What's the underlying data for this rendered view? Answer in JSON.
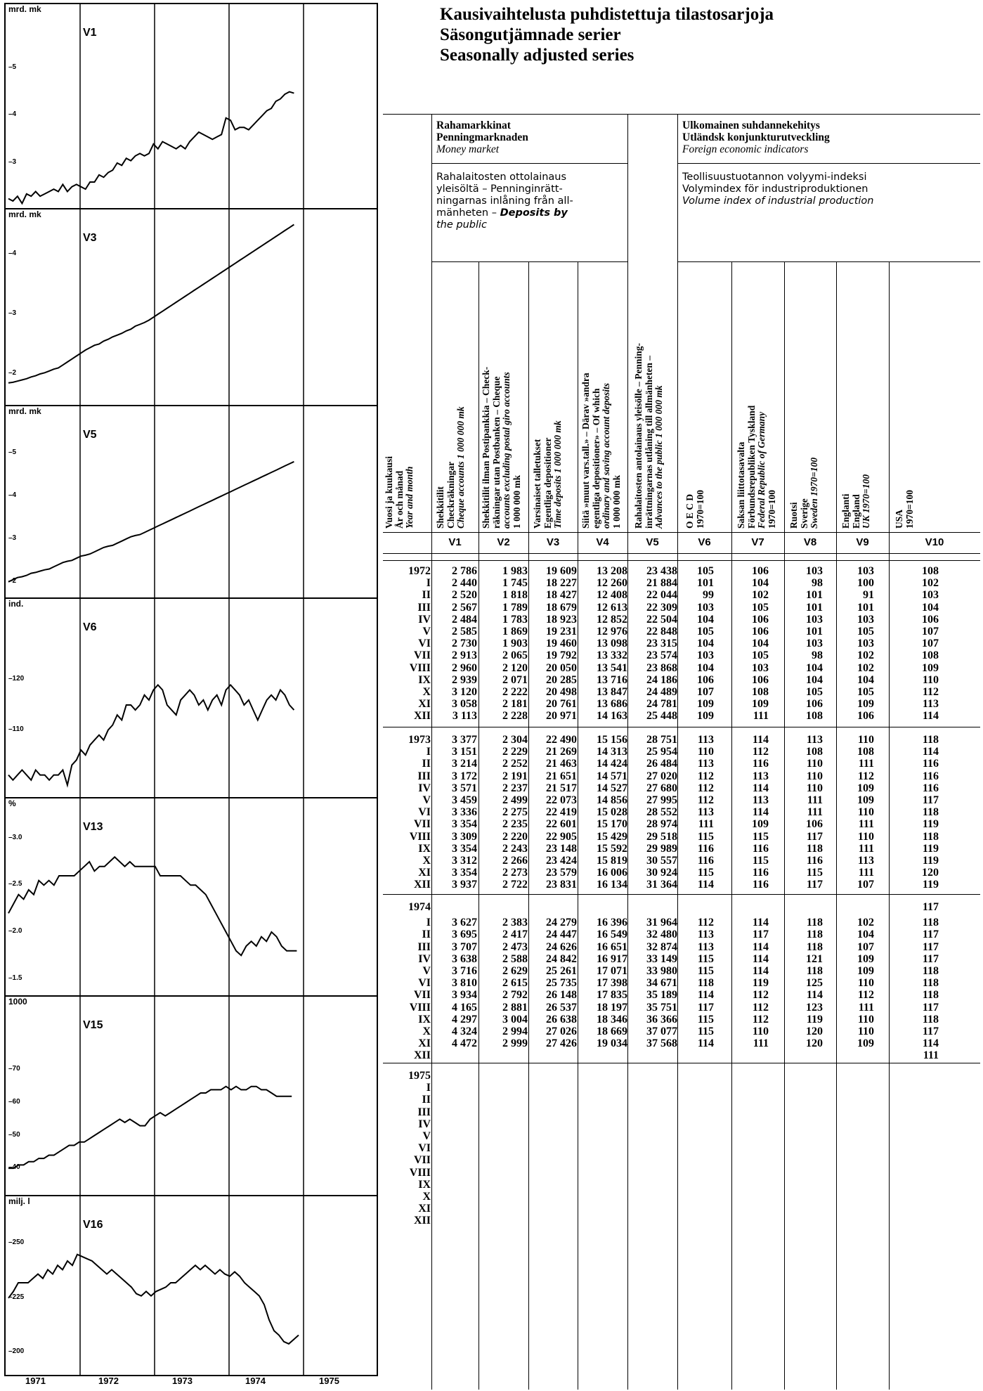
{
  "titles": [
    "Kausivaihtelusta puhdistettuja tilastosarjoja",
    "Säsongutjämnade serier",
    "Seasonally adjusted series"
  ],
  "charts": [
    {
      "name": "V1",
      "unit": "mrd. mk",
      "ticks": [
        {
          "label": "–5",
          "v": 5
        },
        {
          "label": "–4",
          "v": 4
        },
        {
          "label": "–3",
          "v": 3
        }
      ],
      "ymin": 2.2,
      "ymax": 5.9,
      "values": [
        2.25,
        2.2,
        2.3,
        2.15,
        2.35,
        2.3,
        2.4,
        2.3,
        2.35,
        2.4,
        2.45,
        2.4,
        2.55,
        2.4,
        2.5,
        2.55,
        2.5,
        2.45,
        2.6,
        2.6,
        2.75,
        2.7,
        2.8,
        2.85,
        3.0,
        2.95,
        3.1,
        3.05,
        3.15,
        3.2,
        3.15,
        3.2,
        3.4,
        3.3,
        3.45,
        3.4,
        3.35,
        3.3,
        3.37,
        3.3,
        3.45,
        3.55,
        3.65,
        3.6,
        3.55,
        3.5,
        3.55,
        3.6,
        3.95,
        3.9,
        3.7,
        3.75,
        3.75,
        3.7,
        3.8,
        3.9,
        4.0,
        4.1,
        4.15,
        4.3,
        4.35,
        4.45,
        4.5,
        4.47
      ]
    },
    {
      "name": "V3",
      "unit": "mrd. mk",
      "ticks": [
        {
          "label": "–4",
          "v": 4
        },
        {
          "label": "–3",
          "v": 3
        },
        {
          "label": "–2",
          "v": 2
        }
      ],
      "ymin": 1.6,
      "ymax": 4.4,
      "values": [
        1.85,
        1.86,
        1.88,
        1.9,
        1.92,
        1.95,
        1.97,
        2.0,
        2.02,
        2.05,
        2.08,
        2.1,
        2.15,
        2.2,
        2.25,
        2.3,
        2.35,
        2.4,
        2.44,
        2.48,
        2.5,
        2.55,
        2.58,
        2.62,
        2.65,
        2.68,
        2.72,
        2.75,
        2.8,
        2.83,
        2.86,
        2.9,
        2.95,
        3.0,
        3.05,
        3.1,
        3.15,
        3.2,
        3.25,
        3.3,
        3.35,
        3.4,
        3.45,
        3.5,
        3.55,
        3.6,
        3.65,
        3.7,
        3.75,
        3.8,
        3.85,
        3.9,
        3.95,
        4.0,
        4.05,
        4.1,
        4.15,
        4.2,
        4.25,
        4.3,
        4.35,
        4.4,
        4.45,
        4.5
      ]
    },
    {
      "name": "V5",
      "unit": "mrd. mk",
      "ticks": [
        {
          "label": "–5",
          "v": 5
        },
        {
          "label": "–4",
          "v": 4
        },
        {
          "label": "–3",
          "v": 3
        },
        {
          "label": "–2",
          "v": 2
        }
      ],
      "ymin": 1.8,
      "ymax": 5.6,
      "values": [
        2.0,
        2.05,
        2.1,
        2.12,
        2.15,
        2.2,
        2.22,
        2.25,
        2.28,
        2.3,
        2.35,
        2.4,
        2.45,
        2.48,
        2.5,
        2.55,
        2.6,
        2.62,
        2.65,
        2.7,
        2.75,
        2.8,
        2.83,
        2.85,
        2.9,
        2.95,
        3.0,
        3.05,
        3.08,
        3.1,
        3.15,
        3.2,
        3.25,
        3.3,
        3.35,
        3.4,
        3.45,
        3.5,
        3.55,
        3.6,
        3.65,
        3.7,
        3.75,
        3.8,
        3.85,
        3.9,
        3.95,
        4.0,
        4.05,
        4.1,
        4.15,
        4.2,
        4.25,
        4.3,
        4.35,
        4.4,
        4.45,
        4.5,
        4.55,
        4.6,
        4.65,
        4.7,
        4.75,
        4.8
      ]
    },
    {
      "name": "V6",
      "unit": "ind.",
      "ticks": [
        {
          "label": "–120",
          "v": 120
        },
        {
          "label": "–110",
          "v": 110
        }
      ],
      "ymin": 98,
      "ymax": 132,
      "values": [
        101,
        100,
        101,
        102,
        101,
        100,
        102,
        101,
        101,
        100,
        101,
        101,
        102,
        99,
        103,
        104,
        106,
        105,
        107,
        108,
        109,
        108,
        110,
        111,
        113,
        112,
        115,
        115,
        114,
        115,
        117,
        116,
        118,
        119,
        118,
        115,
        114,
        113,
        116,
        117,
        118,
        117,
        115,
        116,
        114,
        116,
        117,
        115,
        118,
        119,
        118,
        117,
        115,
        116,
        114,
        112,
        114,
        116,
        117,
        116,
        118,
        117,
        115,
        114
      ]
    },
    {
      "name": "V13",
      "unit": "%",
      "ticks": [
        {
          "label": "–3.0",
          "v": 3.0
        },
        {
          "label": "–2.5",
          "v": 2.5
        },
        {
          "label": "–2.0",
          "v": 2.0
        },
        {
          "label": "–1.5",
          "v": 1.5
        }
      ],
      "ymin": 1.4,
      "ymax": 3.2,
      "values": [
        2.2,
        2.3,
        2.4,
        2.35,
        2.45,
        2.4,
        2.55,
        2.5,
        2.55,
        2.5,
        2.6,
        2.6,
        2.6,
        2.6,
        2.65,
        2.7,
        2.75,
        2.65,
        2.7,
        2.7,
        2.75,
        2.8,
        2.75,
        2.7,
        2.75,
        2.7,
        2.7,
        2.7,
        2.7,
        2.7,
        2.6,
        2.6,
        2.6,
        2.6,
        2.6,
        2.55,
        2.5,
        2.5,
        2.45,
        2.4,
        2.3,
        2.2,
        2.1,
        2.0,
        1.9,
        1.8,
        1.75,
        1.85,
        1.9,
        1.85,
        1.95,
        1.9,
        2.0,
        1.95,
        1.85,
        1.8,
        1.8,
        1.8
      ]
    },
    {
      "name": "V15",
      "unit": "1000",
      "ticks": [
        {
          "label": "–70",
          "v": 70
        },
        {
          "label": "–60",
          "v": 60
        },
        {
          "label": "–50",
          "v": 50
        },
        {
          "label": "–40",
          "v": 40
        }
      ],
      "ymin": 34,
      "ymax": 86,
      "values": [
        40,
        40,
        41,
        41,
        42,
        42,
        43,
        43,
        44,
        44,
        45,
        46,
        47,
        47,
        48,
        48,
        49,
        50,
        51,
        52,
        53,
        54,
        55,
        54,
        55,
        54,
        53,
        53,
        55,
        56,
        57,
        56,
        57,
        58,
        59,
        60,
        61,
        62,
        63,
        63,
        64,
        64,
        64,
        65,
        64,
        65,
        64,
        64,
        65,
        65,
        64,
        64,
        63,
        62,
        62,
        62,
        62
      ]
    },
    {
      "name": "V16",
      "unit": "milj. l",
      "ticks": [
        {
          "label": "–250",
          "v": 250
        },
        {
          "label": "–225",
          "v": 225
        },
        {
          "label": "–200",
          "v": 200
        }
      ],
      "ymin": 193,
      "ymax": 262,
      "values": [
        225,
        228,
        232,
        232,
        232,
        234,
        236,
        234,
        238,
        236,
        240,
        238,
        242,
        240,
        245,
        244,
        243,
        242,
        240,
        238,
        236,
        238,
        236,
        234,
        232,
        230,
        227,
        226,
        228,
        226,
        228,
        229,
        230,
        232,
        232,
        234,
        236,
        238,
        240,
        238,
        240,
        238,
        236,
        238,
        236,
        235,
        237,
        235,
        232,
        230,
        228,
        226,
        222,
        215,
        210,
        208,
        205,
        204,
        206,
        208
      ]
    }
  ],
  "year_labels": [
    "1971",
    "1972",
    "1973",
    "1974",
    "1975"
  ],
  "table": {
    "group1": {
      "fi": "Rahamarkkinat",
      "sv": "Penningmarknaden",
      "en": "Money market"
    },
    "group1sub": {
      "l1": "Rahalaitosten ottolainaus",
      "l2": "yleisöltä – Penninginrätt-",
      "l3": "ningarnas inlåning från all-",
      "l4": "mänheten –",
      "l4b": "Deposits by",
      "l5": "the public"
    },
    "group2": {
      "fi": "Ulkomainen suhdannekehitys",
      "sv": "Utländsk konjunkturutveckling",
      "en": "Foreign economic indicators"
    },
    "group2sub": {
      "fi": "Teollisuustuotannon volyymi-indeksi",
      "sv": "Volymindex för industriproduktionen",
      "en": "Volume index of industrial production"
    },
    "col0": {
      "a": "Vuosi ja kuukausi",
      "b": "År och månad",
      "c": "Year and month"
    },
    "cols": [
      {
        "a": "Shekkitilit",
        "b": "Checkräkningar",
        "c": "Cheque accounts",
        "d": "1 000 000 mk"
      },
      {
        "a": "Shekkitilit ilman Postipankkia – Check-",
        "b": "räkningar utan Postbanken –",
        "c": "Cheque",
        "d": "accounts excluding postal giro accounts",
        "e": "1 000 000 mk"
      },
      {
        "a": "Varsinaiset talletukset",
        "b": "Egentliga depositioner",
        "c": "Time deposits",
        "d": "1 000 000 mk"
      },
      {
        "a": "Siitä »muut vars.tall.» – Därav »andra",
        "b": "egentliga depositioner» –",
        "c": "Of which",
        "d": "ordinary and saving account deposits",
        "e": "1 000 000 mk"
      },
      {
        "a": "Rahalaitosten antolainaus yleisölle – Penning-",
        "b": "inrättningarnas utlåning till allmänheten –",
        "c": "Advances to the public",
        "d": "1 000 000 mk"
      },
      {
        "a": "O E C D",
        "b": "1970=100"
      },
      {
        "a": "Saksan liittotasavalta",
        "b": "Förbundsrepubliken Tyskland",
        "c": "Federal Republic of Germany",
        "d": "1970=100"
      },
      {
        "a": "Ruotsi",
        "b": "Sverige",
        "c": "Sweden",
        "d": "1970=100"
      },
      {
        "a": "Englanti",
        "b": "England",
        "c": "UK",
        "d": "1970=100"
      },
      {
        "a": "USA",
        "b": "1970=100"
      }
    ],
    "codes": [
      "V1",
      "V2",
      "V3",
      "V4",
      "V5",
      "V6",
      "V7",
      "V8",
      "V9",
      "V10"
    ],
    "rows1972": [
      [
        "1972",
        "2 786",
        "1 983",
        "19 609",
        "13 208",
        "23 438",
        "105",
        "106",
        "103",
        "103",
        "108"
      ],
      [
        "I",
        "2 440",
        "1 745",
        "18 227",
        "12 260",
        "21 884",
        "101",
        "104",
        "98",
        "100",
        "102"
      ],
      [
        "II",
        "2 520",
        "1 818",
        "18 427",
        "12 408",
        "22 044",
        "99",
        "102",
        "101",
        "91",
        "103"
      ],
      [
        "III",
        "2 567",
        "1 789",
        "18 679",
        "12 613",
        "22 309",
        "103",
        "105",
        "101",
        "101",
        "104"
      ],
      [
        "IV",
        "2 484",
        "1 783",
        "18 923",
        "12 852",
        "22 504",
        "104",
        "106",
        "103",
        "103",
        "106"
      ],
      [
        "V",
        "2 585",
        "1 869",
        "19 231",
        "12 976",
        "22 848",
        "105",
        "106",
        "101",
        "105",
        "107"
      ],
      [
        "VI",
        "2 730",
        "1 903",
        "19 460",
        "13 098",
        "23 315",
        "104",
        "104",
        "103",
        "103",
        "107"
      ],
      [
        "VII",
        "2 913",
        "2 065",
        "19 792",
        "13 332",
        "23 574",
        "103",
        "105",
        "98",
        "102",
        "108"
      ],
      [
        "VIII",
        "2 960",
        "2 120",
        "20 050",
        "13 541",
        "23 868",
        "104",
        "103",
        "104",
        "102",
        "109"
      ],
      [
        "IX",
        "2 939",
        "2 071",
        "20 285",
        "13 716",
        "24 186",
        "106",
        "106",
        "104",
        "104",
        "110"
      ],
      [
        "X",
        "3 120",
        "2 222",
        "20 498",
        "13 847",
        "24 489",
        "107",
        "108",
        "105",
        "105",
        "112"
      ],
      [
        "XI",
        "3 058",
        "2 181",
        "20 761",
        "13 686",
        "24 781",
        "109",
        "109",
        "106",
        "109",
        "113"
      ],
      [
        "XII",
        "3 113",
        "2 228",
        "20 971",
        "14 163",
        "25 448",
        "109",
        "111",
        "108",
        "106",
        "114"
      ]
    ],
    "rows1973": [
      [
        "1973",
        "3 377",
        "2 304",
        "22 490",
        "15 156",
        "28 751",
        "113",
        "114",
        "113",
        "110",
        "118"
      ],
      [
        "I",
        "3 151",
        "2 229",
        "21 269",
        "14 313",
        "25 954",
        "110",
        "112",
        "108",
        "108",
        "114"
      ],
      [
        "II",
        "3 214",
        "2 252",
        "21 463",
        "14 424",
        "26 484",
        "113",
        "116",
        "110",
        "111",
        "116"
      ],
      [
        "III",
        "3 172",
        "2 191",
        "21 651",
        "14 571",
        "27 020",
        "112",
        "113",
        "110",
        "112",
        "116"
      ],
      [
        "IV",
        "3 571",
        "2 237",
        "21 517",
        "14 527",
        "27 680",
        "112",
        "114",
        "110",
        "109",
        "116"
      ],
      [
        "V",
        "3 459",
        "2 499",
        "22 073",
        "14 856",
        "27 995",
        "112",
        "113",
        "111",
        "109",
        "117"
      ],
      [
        "VI",
        "3 336",
        "2 275",
        "22 419",
        "15 028",
        "28 552",
        "113",
        "114",
        "111",
        "110",
        "118"
      ],
      [
        "VII",
        "3 354",
        "2 235",
        "22 601",
        "15 170",
        "28 974",
        "111",
        "109",
        "106",
        "111",
        "119"
      ],
      [
        "VIII",
        "3 309",
        "2 220",
        "22 905",
        "15 429",
        "29 518",
        "115",
        "115",
        "117",
        "110",
        "118"
      ],
      [
        "IX",
        "3 354",
        "2 243",
        "23 148",
        "15 592",
        "29 989",
        "116",
        "116",
        "118",
        "111",
        "119"
      ],
      [
        "X",
        "3 312",
        "2 266",
        "23 424",
        "15 819",
        "30 557",
        "116",
        "115",
        "116",
        "113",
        "119"
      ],
      [
        "XI",
        "3 354",
        "2 273",
        "23 579",
        "16 006",
        "30 924",
        "115",
        "116",
        "115",
        "111",
        "120"
      ],
      [
        "XII",
        "3 937",
        "2 722",
        "23 831",
        "16 134",
        "31 364",
        "114",
        "116",
        "117",
        "107",
        "119"
      ]
    ],
    "rows1974": [
      [
        "1974",
        "",
        "",
        "",
        "",
        "",
        "",
        "",
        "",
        "",
        "117"
      ],
      [
        "I",
        "3 627",
        "2 383",
        "24 279",
        "16 396",
        "31 964",
        "112",
        "114",
        "118",
        "102",
        "118"
      ],
      [
        "II",
        "3 695",
        "2 417",
        "24 447",
        "16 549",
        "32 480",
        "113",
        "117",
        "118",
        "104",
        "117"
      ],
      [
        "III",
        "3 707",
        "2 473",
        "24 626",
        "16 651",
        "32 874",
        "113",
        "114",
        "118",
        "107",
        "117"
      ],
      [
        "IV",
        "3 638",
        "2 588",
        "24 842",
        "16 917",
        "33 149",
        "115",
        "114",
        "121",
        "109",
        "117"
      ],
      [
        "V",
        "3 716",
        "2 629",
        "25 261",
        "17 071",
        "33 980",
        "115",
        "114",
        "118",
        "109",
        "118"
      ],
      [
        "VI",
        "3 810",
        "2 615",
        "25 735",
        "17 398",
        "34 671",
        "118",
        "119",
        "125",
        "110",
        "118"
      ],
      [
        "VII",
        "3 934",
        "2 792",
        "26 148",
        "17 835",
        "35 189",
        "114",
        "112",
        "114",
        "112",
        "118"
      ],
      [
        "VIII",
        "4 165",
        "2 881",
        "26 537",
        "18 197",
        "35 751",
        "117",
        "112",
        "123",
        "111",
        "117"
      ],
      [
        "IX",
        "4 297",
        "3 004",
        "26 638",
        "18 346",
        "36 366",
        "115",
        "112",
        "119",
        "110",
        "118"
      ],
      [
        "X",
        "4 324",
        "2 994",
        "27 026",
        "18 669",
        "37 077",
        "115",
        "110",
        "120",
        "110",
        "117"
      ],
      [
        "XI",
        "4 472",
        "2 999",
        "27 426",
        "19 034",
        "37 568",
        "114",
        "111",
        "120",
        "109",
        "114"
      ],
      [
        "XII",
        "",
        "",
        "",
        "",
        "",
        "",
        "",
        "",
        "",
        "111"
      ]
    ],
    "rows1975": [
      [
        "1975"
      ],
      [
        "I"
      ],
      [
        "II"
      ],
      [
        "III"
      ],
      [
        "IV"
      ],
      [
        "V"
      ],
      [
        "VI"
      ],
      [
        "VII"
      ],
      [
        "VIII"
      ],
      [
        "IX"
      ],
      [
        "X"
      ],
      [
        "XI"
      ],
      [
        "XII"
      ]
    ]
  }
}
